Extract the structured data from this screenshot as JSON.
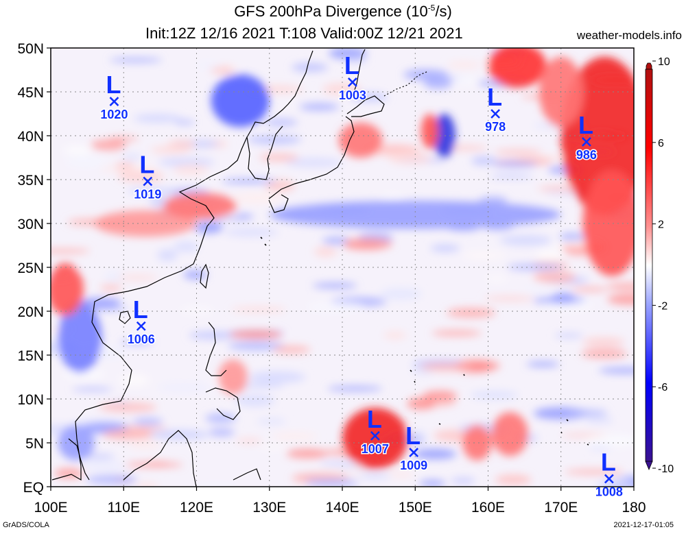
{
  "header": {
    "title_main": "GFS 200hPa Divergence (10",
    "title_exp": "-5",
    "title_unit": "/s)",
    "title_run": "Init:12Z 12/16 2021 T:108 Valid:00Z 12/21 2021",
    "site": "weather-models.info"
  },
  "footer": {
    "left": "GrADS/COLA",
    "right": "2021-12-17-01:05"
  },
  "map": {
    "lon_range": [
      100,
      180
    ],
    "lat_range": [
      0,
      50
    ],
    "lon_ticks": [
      {
        "v": 100,
        "label": "100E"
      },
      {
        "v": 110,
        "label": "110E"
      },
      {
        "v": 120,
        "label": "120E"
      },
      {
        "v": 130,
        "label": "130E"
      },
      {
        "v": 140,
        "label": "140E"
      },
      {
        "v": 150,
        "label": "150E"
      },
      {
        "v": 160,
        "label": "160E"
      },
      {
        "v": 170,
        "label": "170E"
      },
      {
        "v": 180,
        "label": "180"
      }
    ],
    "lat_ticks": [
      {
        "v": 0,
        "label": "EQ"
      },
      {
        "v": 5,
        "label": "5N"
      },
      {
        "v": 10,
        "label": "10N"
      },
      {
        "v": 15,
        "label": "15N"
      },
      {
        "v": 20,
        "label": "20N"
      },
      {
        "v": 25,
        "label": "25N"
      },
      {
        "v": 30,
        "label": "30N"
      },
      {
        "v": 35,
        "label": "35N"
      },
      {
        "v": 40,
        "label": "40N"
      },
      {
        "v": 45,
        "label": "45N"
      },
      {
        "v": 50,
        "label": "50N"
      }
    ],
    "grid": true
  },
  "colorbar": {
    "range": [
      -10,
      10
    ],
    "ticks": [
      {
        "v": 10,
        "label": "10"
      },
      {
        "v": 6,
        "label": "6"
      },
      {
        "v": 2,
        "label": "2"
      },
      {
        "v": -2,
        "label": "-2"
      },
      {
        "v": -6,
        "label": "-6"
      },
      {
        "v": -10,
        "label": "-10"
      }
    ],
    "colors": {
      "max": "#cc0000",
      "pos": "#ff3030",
      "neutral": "#ffffff",
      "neg": "#3040ff",
      "min": "#2a0a80"
    }
  },
  "lows": [
    {
      "lon": 108.7,
      "lat": 43.9,
      "pressure": "1020"
    },
    {
      "lon": 141.4,
      "lat": 46.1,
      "pressure": "1003"
    },
    {
      "lon": 161.0,
      "lat": 42.5,
      "pressure": "978"
    },
    {
      "lon": 173.5,
      "lat": 39.3,
      "pressure": "986"
    },
    {
      "lon": 113.3,
      "lat": 34.8,
      "pressure": "1019"
    },
    {
      "lon": 112.4,
      "lat": 18.3,
      "pressure": "1006"
    },
    {
      "lon": 144.5,
      "lat": 5.8,
      "pressure": "1007"
    },
    {
      "lon": 149.8,
      "lat": 3.9,
      "pressure": "1009"
    },
    {
      "lon": 176.6,
      "lat": 0.9,
      "pressure": "1008"
    }
  ],
  "field_features": [
    {
      "lon": 144.5,
      "lat": 5.5,
      "value": 7,
      "rlon": 4.5,
      "rlat": 3.5
    },
    {
      "lon": 176.0,
      "lat": 40.0,
      "value": 7,
      "rlon": 6,
      "rlat": 9
    },
    {
      "lon": 177.0,
      "lat": 30.0,
      "value": 5,
      "rlon": 4,
      "rlat": 6
    },
    {
      "lon": 164.0,
      "lat": 48.0,
      "value": 6,
      "rlon": 4,
      "rlat": 2.5
    },
    {
      "lon": 154.0,
      "lat": 40.0,
      "value": -7,
      "rlon": 1.5,
      "rlat": 2.5
    },
    {
      "lon": 152.0,
      "lat": 40.5,
      "value": 5,
      "rlon": 1.2,
      "rlat": 2
    },
    {
      "lon": 142.5,
      "lat": 39.5,
      "value": 4,
      "rlon": 3,
      "rlat": 2
    },
    {
      "lon": 126.0,
      "lat": 44.0,
      "value": -5,
      "rlon": 4,
      "rlat": 3
    },
    {
      "lon": 104.0,
      "lat": 17.0,
      "value": -4,
      "rlon": 3,
      "rlat": 4
    },
    {
      "lon": 102.0,
      "lat": 22.5,
      "value": 5,
      "rlon": 2.5,
      "rlat": 3
    },
    {
      "lon": 163.0,
      "lat": 6.0,
      "value": 4,
      "rlon": 2.5,
      "rlat": 2.5
    },
    {
      "lon": 158.5,
      "lat": 5.0,
      "value": 4,
      "rlon": 2,
      "rlat": 2
    },
    {
      "lon": 113.0,
      "lat": 30.0,
      "value": 3,
      "rlon": 7,
      "rlat": 1.5
    },
    {
      "lon": 120.5,
      "lat": 32.0,
      "value": 4,
      "rlon": 5,
      "rlat": 1.5
    },
    {
      "lon": 150.0,
      "lat": 31.0,
      "value": -3,
      "rlon": 20,
      "rlat": 1.6
    },
    {
      "lon": 125.0,
      "lat": 12.5,
      "value": 3,
      "rlon": 2,
      "rlat": 2
    },
    {
      "lon": 103.5,
      "lat": 5.0,
      "value": -3,
      "rlon": 2.5,
      "rlat": 2
    },
    {
      "lon": 170.0,
      "lat": 45.0,
      "value": 4,
      "rlon": 3,
      "rlat": 4
    }
  ]
}
